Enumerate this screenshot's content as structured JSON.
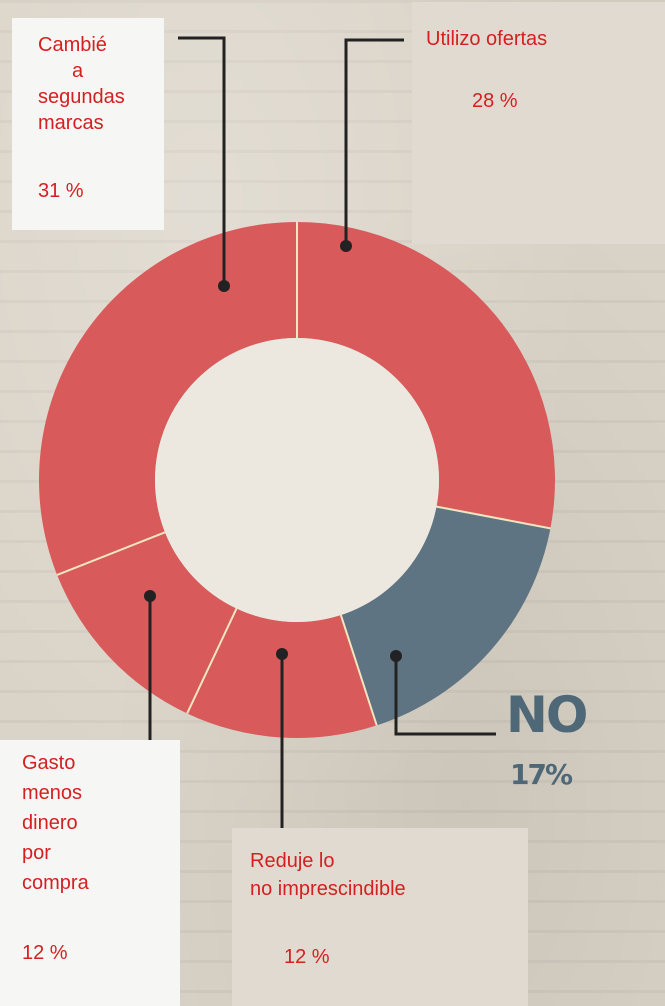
{
  "chart_data": {
    "type": "pie",
    "donut": true,
    "slices": [
      {
        "label": "Utilizo ofertas",
        "value": 28,
        "value_label": "28 %",
        "color": "#d85a5a"
      },
      {
        "label": "NO",
        "value": 17,
        "value_label": "17%",
        "color": "#5e7482"
      },
      {
        "label": "Reduje lo no imprescindible",
        "value": 12,
        "value_label": "12 %",
        "color": "#d85a5a"
      },
      {
        "label": "Gasto menos dinero por compra",
        "value": 12,
        "value_label": "12 %",
        "color": "#d85a5a"
      },
      {
        "label": "Cambié a segundas marcas",
        "value": 31,
        "value_label": "31 %",
        "color": "#d85a5a"
      }
    ]
  },
  "labels": {
    "cambie": {
      "lines": [
        "Cambié",
        "a",
        "segundas",
        "marcas"
      ],
      "pct": "31 %"
    },
    "utilizo": {
      "text": "Utilizo ofertas",
      "pct": "28 %"
    },
    "gasto": {
      "lines": [
        "Gasto",
        "menos",
        "dinero",
        "por",
        "compra"
      ],
      "pct": "12 %"
    },
    "reduje": {
      "lines": [
        "Reduje lo",
        "no imprescindible"
      ],
      "pct": "12 %"
    },
    "no": {
      "text": "NO",
      "pct": "17%"
    }
  },
  "colors": {
    "label_text": "#d42020",
    "no_text": "#4f6878",
    "slice_red": "#d85a5a",
    "slice_blue": "#5e7482",
    "separator": "#f0e6c0"
  }
}
